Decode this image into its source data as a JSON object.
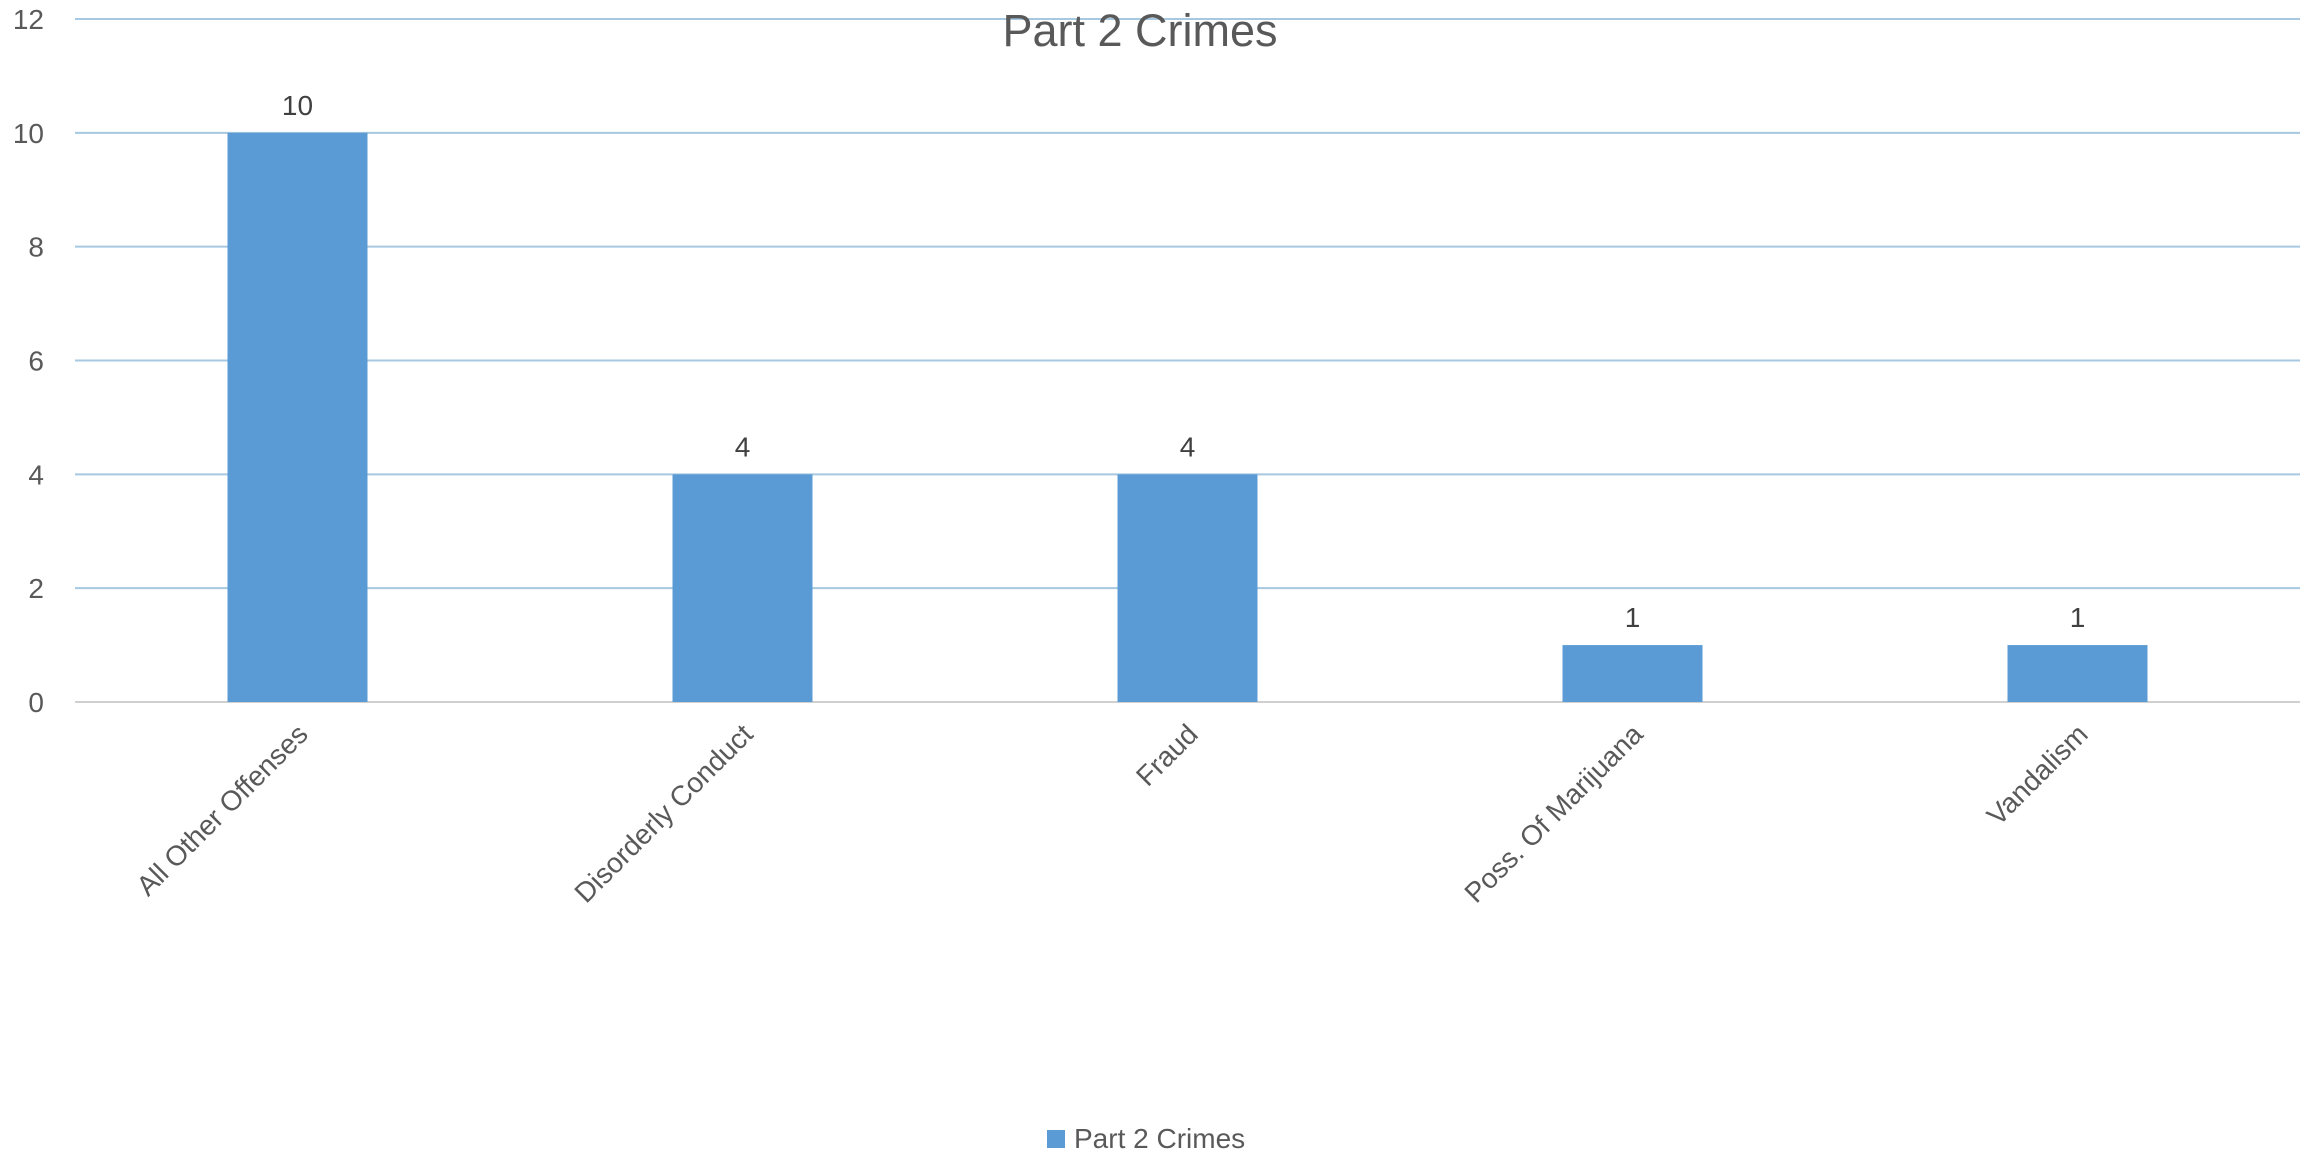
{
  "chart_data": {
    "type": "bar",
    "title": "Part 2 Crimes",
    "categories": [
      "All Other Offenses",
      "Disorderly Conduct",
      "Fraud",
      "Poss. Of Marijuana",
      "Vandalism"
    ],
    "series": [
      {
        "name": "Part 2 Crimes",
        "values": [
          10,
          4,
          4,
          1,
          1
        ],
        "color": "#5B9BD5"
      }
    ],
    "ylim": [
      0,
      12
    ],
    "yticks": [
      0,
      2,
      4,
      6,
      8,
      10,
      12
    ],
    "data_labels": true,
    "grid": true,
    "gridline_color": "#A6C8E0",
    "legend_position": "bottom"
  }
}
